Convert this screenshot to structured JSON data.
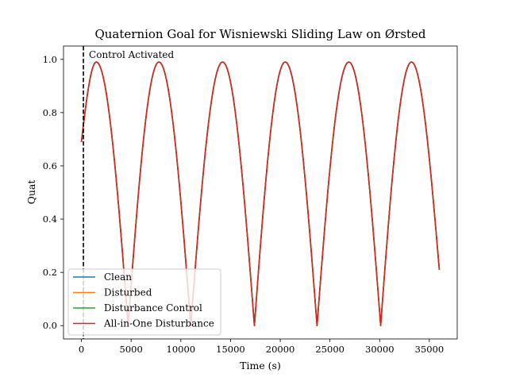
{
  "chart_data": {
    "type": "line",
    "title": "Quaternion Goal for Wisniewski Sliding Law on Ørsted",
    "xlabel": "Time (s)",
    "ylabel": "Quat",
    "xlim": [
      -1800,
      37800
    ],
    "ylim": [
      -0.05,
      1.05
    ],
    "xticks": [
      0,
      5000,
      10000,
      15000,
      20000,
      25000,
      30000,
      35000
    ],
    "xtick_labels": [
      "0",
      "5000",
      "10000",
      "15000",
      "20000",
      "25000",
      "30000",
      "35000"
    ],
    "yticks": [
      0.0,
      0.2,
      0.4,
      0.6,
      0.8,
      1.0
    ],
    "ytick_labels": [
      "0.0",
      "0.2",
      "0.4",
      "0.6",
      "0.8",
      "1.0"
    ],
    "grid": false,
    "legend_position": "lower-left",
    "annotation": {
      "text": "Control Activated",
      "x": 200,
      "style": "vertical dashed line",
      "color": "#000000"
    },
    "series": [
      {
        "name": "Clean",
        "color": "#1f77b4",
        "x": [
          0,
          1500,
          4700,
          7800,
          11000,
          14200,
          17400,
          20500,
          23700,
          26900,
          30100,
          33200,
          36000
        ],
        "y": [
          0.69,
          0.99,
          0.0,
          0.99,
          0.0,
          0.99,
          0.0,
          0.99,
          0.0,
          0.99,
          0.0,
          0.99,
          0.21
        ]
      },
      {
        "name": "Disturbed",
        "color": "#ff7f0e",
        "x": [
          0,
          1500,
          4700,
          7800,
          11000,
          14200,
          17400,
          20500,
          23700,
          26900,
          30100,
          33200,
          36000
        ],
        "y": [
          0.69,
          0.99,
          0.0,
          0.99,
          0.0,
          0.99,
          0.0,
          0.99,
          0.0,
          0.99,
          0.0,
          0.99,
          0.21
        ]
      },
      {
        "name": "Disturbance Control",
        "color": "#2ca02c",
        "x": [
          0,
          1500,
          4700,
          7800,
          11000,
          14200,
          17400,
          20500,
          23700,
          26900,
          30100,
          33200,
          36000
        ],
        "y": [
          0.69,
          0.99,
          0.0,
          0.99,
          0.0,
          0.99,
          0.0,
          0.99,
          0.0,
          0.99,
          0.0,
          0.99,
          0.21
        ]
      },
      {
        "name": "All-in-One Disturbance",
        "color": "#d62728",
        "x": [
          0,
          1500,
          4700,
          7800,
          11000,
          14200,
          17400,
          20500,
          23700,
          26900,
          30100,
          33200,
          36000
        ],
        "y": [
          0.69,
          0.99,
          0.0,
          0.99,
          0.0,
          0.99,
          0.0,
          0.99,
          0.0,
          0.99,
          0.0,
          0.99,
          0.21
        ]
      }
    ]
  }
}
